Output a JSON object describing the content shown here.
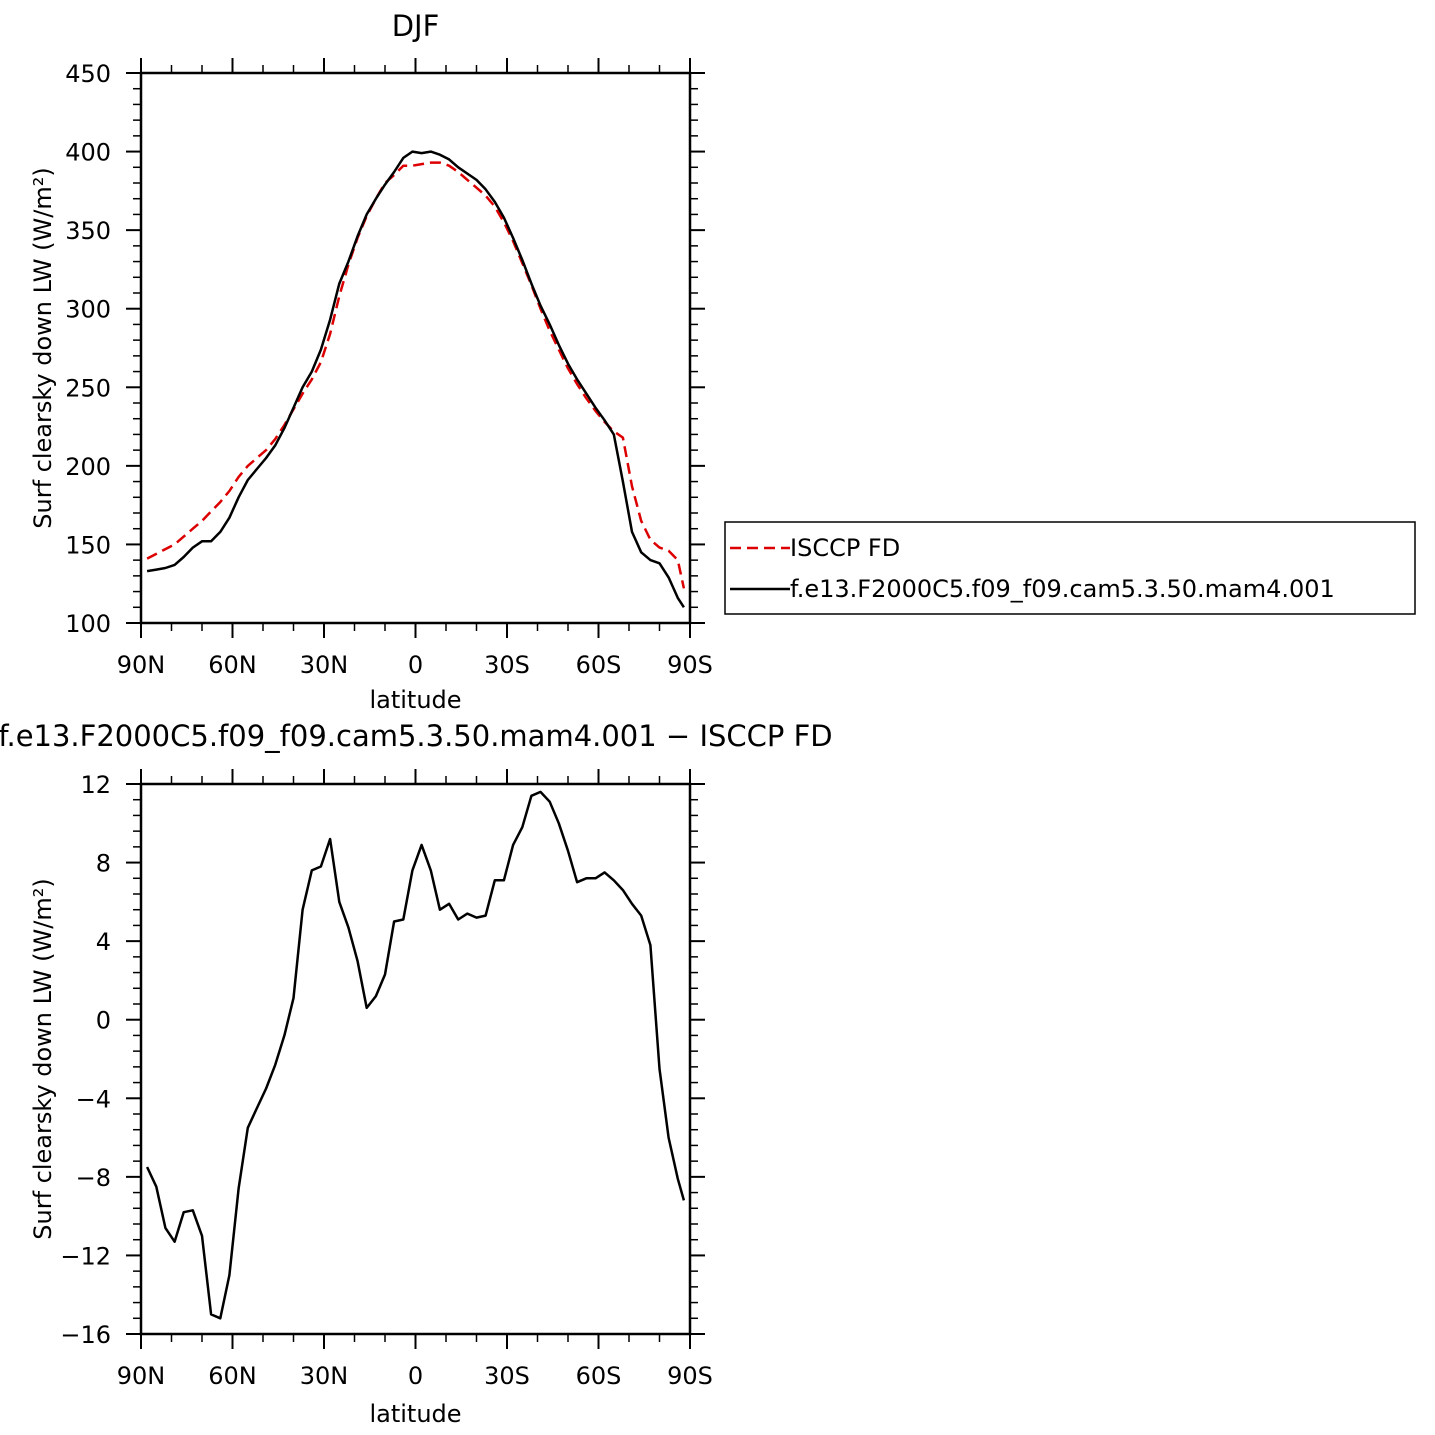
{
  "chart_data": [
    {
      "type": "line",
      "title": "DJF",
      "xlabel": "latitude",
      "ylabel": "Surf clearsky down LW (W/m²)",
      "xlim": [
        -90,
        90
      ],
      "ylim": [
        100,
        450
      ],
      "xticks": [
        -90,
        -60,
        -30,
        0,
        30,
        60,
        90
      ],
      "xtick_labels": [
        "90N",
        "60N",
        "30N",
        "0",
        "30S",
        "60S",
        "90S"
      ],
      "yticks": [
        100,
        150,
        200,
        250,
        300,
        350,
        400,
        450
      ],
      "ytick_labels": [
        "100",
        "150",
        "200",
        "250",
        "300",
        "350",
        "400",
        "450"
      ],
      "grid": false,
      "legend": "right",
      "series": [
        {
          "name": "ISCCP FD",
          "color": "#dd0000",
          "dash": "dashed",
          "x": [
            -88,
            -85,
            -82,
            -79,
            -76,
            -73,
            -70,
            -67,
            -64,
            -61,
            -58,
            -55,
            -52,
            -49,
            -46,
            -43,
            -40,
            -37,
            -34,
            -31,
            -28,
            -25,
            -22,
            -19,
            -16,
            -13,
            -10,
            -7,
            -4,
            -1,
            2,
            5,
            8,
            11,
            14,
            17,
            20,
            23,
            26,
            29,
            32,
            35,
            38,
            41,
            44,
            47,
            50,
            53,
            56,
            59,
            62,
            65,
            68,
            71,
            74,
            77,
            80,
            83,
            86,
            88
          ],
          "y": [
            141,
            144,
            147,
            150,
            155,
            160,
            165,
            171,
            177,
            184,
            193,
            200,
            205,
            210,
            217,
            226,
            236,
            246,
            255,
            266,
            284,
            308,
            328,
            345,
            359,
            370,
            380,
            385,
            391,
            391,
            392,
            393,
            393,
            391,
            387,
            382,
            377,
            372,
            365,
            355,
            343,
            329,
            315,
            300,
            286,
            274,
            262,
            252,
            243,
            235,
            228,
            222,
            218,
            187,
            165,
            153,
            148,
            146,
            140,
            122
          ]
        },
        {
          "name": "f.e13.F2000C5.f09_f09.cam5.3.50.mam4.001",
          "color": "#000000",
          "dash": "solid",
          "x": [
            -88,
            -85,
            -82,
            -79,
            -76,
            -73,
            -70,
            -67,
            -64,
            -61,
            -58,
            -55,
            -52,
            -49,
            -46,
            -43,
            -40,
            -37,
            -34,
            -31,
            -28,
            -25,
            -22,
            -19,
            -16,
            -13,
            -10,
            -7,
            -4,
            -1,
            2,
            5,
            8,
            11,
            14,
            17,
            20,
            23,
            26,
            29,
            32,
            35,
            38,
            41,
            44,
            47,
            50,
            53,
            56,
            59,
            62,
            65,
            68,
            71,
            74,
            77,
            80,
            83,
            86,
            88
          ],
          "y": [
            133,
            134,
            135,
            137,
            142,
            148,
            152,
            152,
            158,
            167,
            180,
            191,
            198,
            205,
            213,
            224,
            237,
            250,
            260,
            274,
            293,
            316,
            330,
            346,
            360,
            370,
            379,
            387,
            396,
            400,
            399,
            400,
            398,
            395,
            390,
            386,
            382,
            376,
            368,
            358,
            345,
            331,
            316,
            302,
            290,
            277,
            265,
            255,
            246,
            237,
            229,
            220,
            190,
            158,
            145,
            140,
            138,
            129,
            116,
            110
          ]
        }
      ]
    },
    {
      "type": "line",
      "title": "f.e13.F2000C5.f09_f09.cam5.3.50.mam4.001 − ISCCP FD",
      "xlabel": "latitude",
      "ylabel": "Surf clearsky down LW (W/m²)",
      "xlim": [
        -90,
        90
      ],
      "ylim": [
        -16,
        12
      ],
      "xticks": [
        -90,
        -60,
        -30,
        0,
        30,
        60,
        90
      ],
      "xtick_labels": [
        "90N",
        "60N",
        "30N",
        "0",
        "30S",
        "60S",
        "90S"
      ],
      "yticks": [
        -16,
        -12,
        -8,
        -4,
        0,
        4,
        8,
        12
      ],
      "ytick_labels": [
        "−16",
        "−12",
        "−8",
        "−4",
        "0",
        "4",
        "8",
        "12"
      ],
      "grid": false,
      "series": [
        {
          "color": "#000000",
          "dash": "solid",
          "x": [
            -88,
            -85,
            -82,
            -79,
            -76,
            -73,
            -70,
            -67,
            -64,
            -61,
            -58,
            -55,
            -52,
            -49,
            -46,
            -43,
            -40,
            -37,
            -34,
            -31,
            -28,
            -25,
            -22,
            -19,
            -16,
            -13,
            -10,
            -7,
            -4,
            -1,
            2,
            5,
            8,
            11,
            14,
            17,
            20,
            23,
            26,
            29,
            32,
            35,
            38,
            41,
            44,
            47,
            50,
            53,
            56,
            59,
            62,
            65,
            68,
            71,
            74,
            77,
            80,
            83,
            86,
            88
          ],
          "y": [
            -7.5,
            -8.5,
            -10.6,
            -11.3,
            -9.8,
            -9.7,
            -11,
            -15,
            -15.2,
            -13,
            -8.6,
            -5.5,
            -4.5,
            -3.5,
            -2.3,
            -0.8,
            1.1,
            5.6,
            7.6,
            7.8,
            9.2,
            6,
            4.7,
            3,
            0.6,
            1.2,
            2.3,
            5,
            5.1,
            7.6,
            8.9,
            7.6,
            5.6,
            5.9,
            5.1,
            5.4,
            5.2,
            5.3,
            7.1,
            7.1,
            8.9,
            9.8,
            11.4,
            11.6,
            11.1,
            10,
            8.6,
            7,
            7.2,
            7.2,
            7.5,
            7.1,
            6.6,
            5.9,
            5.3,
            3.8,
            -2.5,
            -6,
            -8.1,
            -9.2
          ]
        }
      ]
    }
  ]
}
